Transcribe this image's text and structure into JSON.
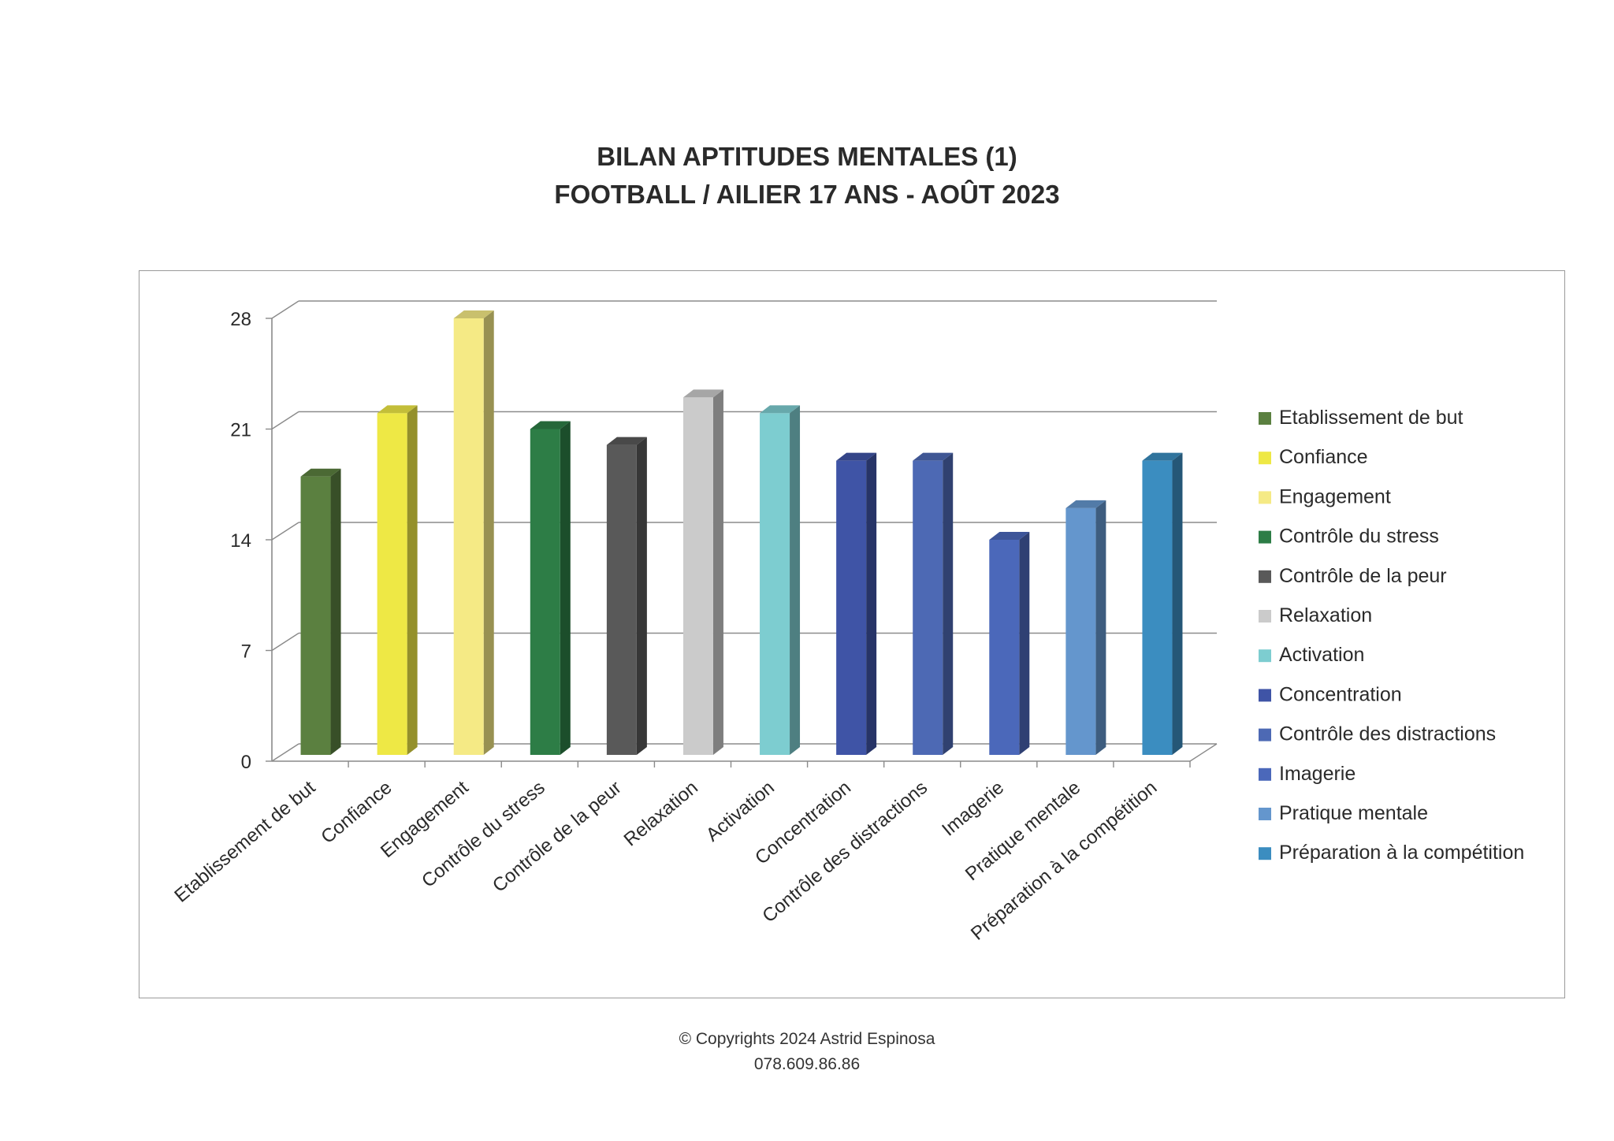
{
  "chart_data": {
    "type": "bar",
    "title_line1": "BILAN APTITUDES MENTALES (1)",
    "title_line2": "FOOTBALL / AILIER 17 ANS - AOÛT 2023",
    "categories": [
      "Etablissement de but",
      "Confiance",
      "Engagement",
      "Contrôle du stress",
      "Contrôle de la peur",
      "Relaxation",
      "Activation",
      "Concentration",
      "Contrôle des distractions",
      "Imagerie",
      "Pratique mentale",
      "Préparation à la compétition"
    ],
    "values": [
      18,
      22,
      28,
      21,
      20,
      23,
      22,
      19,
      19,
      14,
      16,
      19
    ],
    "colors": [
      "#5b8040",
      "#eee845",
      "#f5ea85",
      "#2d7d46",
      "#595959",
      "#cbcbcb",
      "#7dcdd0",
      "#3f54a6",
      "#4d69b4",
      "#4b68ba",
      "#6496cd",
      "#3b8dc0"
    ],
    "ylim": [
      0,
      28
    ],
    "yticks": [
      0,
      7,
      14,
      21,
      28
    ],
    "grid": true,
    "legend_position": "right"
  },
  "footer": {
    "copyright": "© Copyrights 2024 Astrid Espinosa",
    "phone": "078.609.86.86"
  }
}
